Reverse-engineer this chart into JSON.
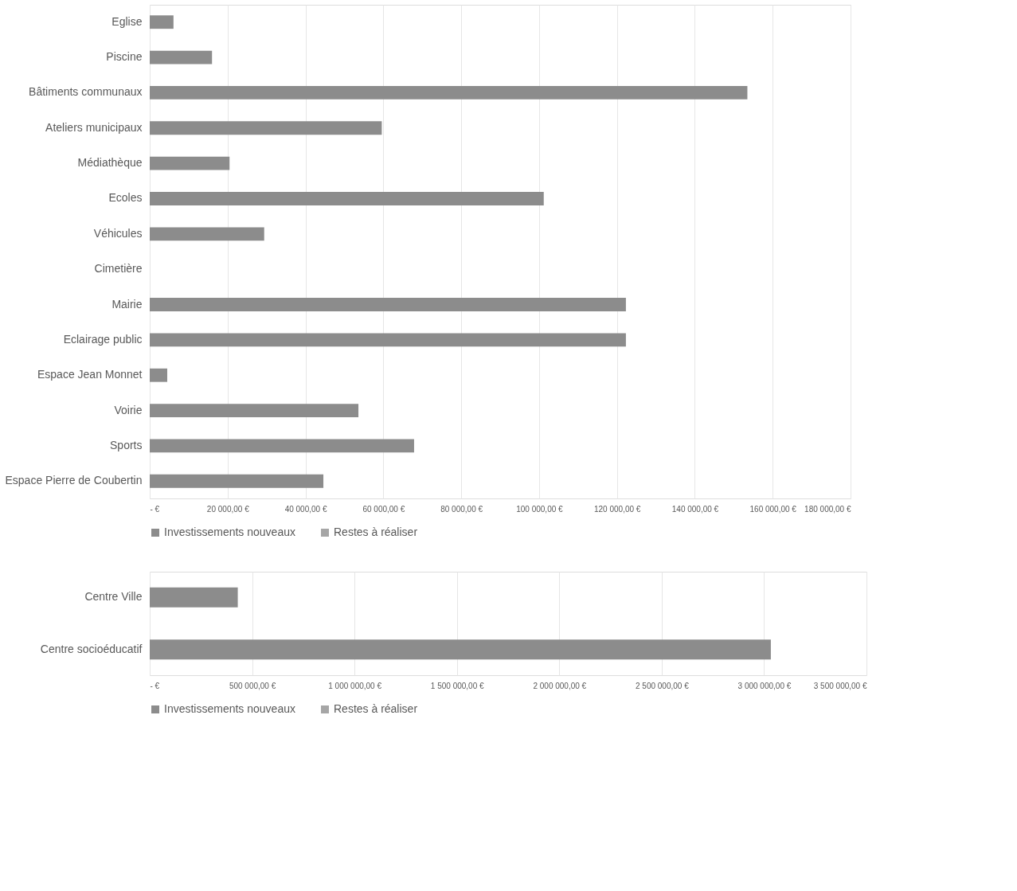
{
  "chart_data": [
    {
      "type": "bar",
      "orientation": "horizontal",
      "categories": [
        "Eglise",
        "Piscine",
        "Bâtiments communaux",
        "Ateliers municipaux",
        "Médiathèque",
        "Ecoles",
        "Véhicules",
        "Cimetière",
        "Mairie",
        "Eclairage public",
        "Espace Jean Monnet",
        "Voirie",
        "Sports",
        "Espace Pierre de Coubertin"
      ],
      "series": [
        {
          "name": "Investissements nouveaux",
          "color": "#8c8c8c",
          "values": [
            6100,
            16000,
            153500,
            59600,
            20500,
            101200,
            29400,
            null,
            122300,
            122300,
            4500,
            53600,
            67900,
            44600
          ]
        },
        {
          "name": "Restes à réaliser",
          "color": "#a6a6a6",
          "values": [
            null,
            null,
            null,
            null,
            null,
            null,
            null,
            null,
            null,
            null,
            null,
            null,
            null,
            null
          ]
        }
      ],
      "xlim": [
        0,
        180000
      ],
      "xticks": [
        {
          "value": 0,
          "label": "- €"
        },
        {
          "value": 20000,
          "label": "20 000,00 €"
        },
        {
          "value": 40000,
          "label": "40 000,00 €"
        },
        {
          "value": 60000,
          "label": "60 000,00 €"
        },
        {
          "value": 80000,
          "label": "80 000,00 €"
        },
        {
          "value": 100000,
          "label": "100 000,00 €"
        },
        {
          "value": 120000,
          "label": "120 000,00 €"
        },
        {
          "value": 140000,
          "label": "140 000,00 €"
        },
        {
          "value": 160000,
          "label": "160 000,00 €"
        },
        {
          "value": 180000,
          "label": "180 000,00 €"
        }
      ],
      "grid": "x",
      "legend": "bottom"
    },
    {
      "type": "bar",
      "orientation": "horizontal",
      "categories": [
        "Centre Ville",
        "Centre socioéducatif"
      ],
      "series": [
        {
          "name": "Investissements nouveaux",
          "color": "#8c8c8c",
          "values": [
            430000,
            3033000
          ]
        },
        {
          "name": "Restes à réaliser",
          "color": "#a6a6a6",
          "values": [
            null,
            null
          ]
        }
      ],
      "xlim": [
        0,
        3500000
      ],
      "xticks": [
        {
          "value": 0,
          "label": "- €"
        },
        {
          "value": 500000,
          "label": "500 000,00 €"
        },
        {
          "value": 1000000,
          "label": "1 000 000,00 €"
        },
        {
          "value": 1500000,
          "label": "1 500 000,00 €"
        },
        {
          "value": 2000000,
          "label": "2 000 000,00 €"
        },
        {
          "value": 2500000,
          "label": "2 500 000,00 €"
        },
        {
          "value": 3000000,
          "label": "3 000 000,00 €"
        },
        {
          "value": 3500000,
          "label": "3 500 000,00 €"
        }
      ],
      "grid": "x",
      "legend": "bottom"
    }
  ]
}
